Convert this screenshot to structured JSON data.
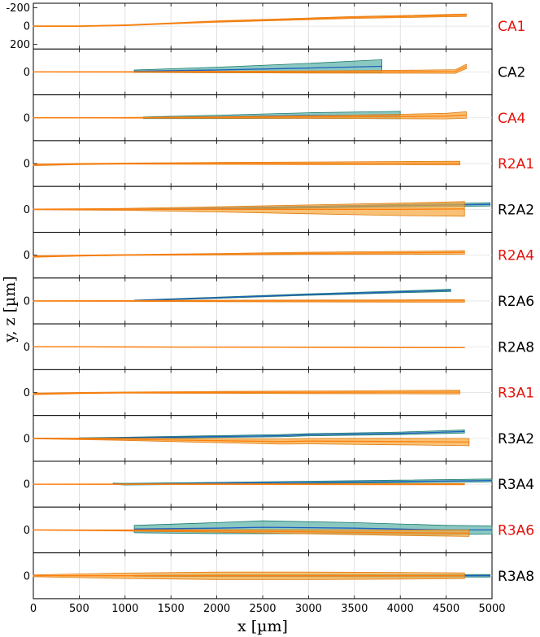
{
  "chart_data": {
    "type": "area",
    "xlabel": "x [µm]",
    "ylabel": "y, z [µm]",
    "xlim": [
      0,
      5000
    ],
    "x_ticks": [
      0,
      500,
      1000,
      1500,
      2000,
      2500,
      3000,
      3500,
      4000,
      4500,
      5000
    ],
    "x_tick_labels": [
      "0",
      "500",
      "1000",
      "1500",
      "2000",
      "2500",
      "3000",
      "3500",
      "4000",
      "4500",
      "5000"
    ],
    "ylim_inverted": [
      250,
      -250
    ],
    "y_ticks": [
      -200,
      0,
      200
    ],
    "y_tick_labels": [
      "-200",
      "0",
      "200"
    ],
    "grid": true,
    "colors": {
      "orange_line": "#ff7f0e",
      "orange_fill": "#f5a63b",
      "blue_line": "#1f5fbf",
      "teal_fill": "#2a9d8f",
      "red_label": "#e3120b",
      "black_label": "#000000"
    },
    "panels": [
      {
        "label": "CA1",
        "label_color": "red",
        "series": [
          {
            "name": "orange",
            "x": [
              0,
              500,
              1000,
              1500,
              2000,
              2500,
              3000,
              3500,
              4000,
              4500,
              4720
            ],
            "y": [
              0,
              0,
              -10,
              -30,
              -50,
              -65,
              -80,
              -95,
              -105,
              -115,
              -120
            ],
            "band": [
              4,
              4,
              5,
              6,
              7,
              8,
              9,
              10,
              11,
              12,
              14
            ]
          }
        ]
      },
      {
        "label": "CA2",
        "label_color": "black",
        "series": [
          {
            "name": "orange",
            "x": [
              0,
              1000,
              2000,
              3000,
              4000,
              4600,
              4720
            ],
            "y": [
              0,
              0,
              0,
              0,
              -2,
              -5,
              -60
            ],
            "band": [
              2,
              4,
              8,
              12,
              16,
              20,
              24
            ]
          },
          {
            "name": "blue",
            "x": [
              1100,
              2000,
              3000,
              3800
            ],
            "y": [
              -8,
              -22,
              -42,
              -62
            ],
            "band": [
              14,
              30,
              52,
              72
            ]
          }
        ]
      },
      {
        "label": "CA4",
        "label_color": "red",
        "series": [
          {
            "name": "orange",
            "x": [
              0,
              1000,
              2000,
              3000,
              4000,
              4500,
              4720
            ],
            "y": [
              0,
              0,
              -3,
              -8,
              -14,
              -18,
              -30
            ],
            "band": [
              2,
              4,
              8,
              14,
              24,
              30,
              36
            ]
          },
          {
            "name": "blue",
            "x": [
              1200,
              2000,
              3000,
              4000
            ],
            "y": [
              0,
              -10,
              -25,
              -30
            ],
            "band": [
              8,
              18,
              30,
              40
            ]
          }
        ]
      },
      {
        "label": "R2A1",
        "label_color": "red",
        "series": [
          {
            "name": "orange",
            "x": [
              0,
              500,
              1000,
              2000,
              3000,
              4000,
              4650
            ],
            "y": [
              15,
              5,
              0,
              -2,
              -3,
              -5,
              -5
            ],
            "band": [
              8,
              6,
              6,
              10,
              14,
              18,
              20
            ]
          }
        ]
      },
      {
        "label": "R2A2",
        "label_color": "black",
        "series": [
          {
            "name": "orange",
            "x": [
              0,
              1000,
              2000,
              3000,
              4000,
              4700
            ],
            "y": [
              0,
              0,
              0,
              0,
              0,
              -5
            ],
            "band": [
              4,
              10,
              28,
              48,
              68,
              80
            ]
          },
          {
            "name": "blue",
            "x": [
              1100,
              2000,
              3000,
              4000,
              4980
            ],
            "y": [
              0,
              -10,
              -25,
              -40,
              -55
            ],
            "band": [
              4,
              6,
              10,
              14,
              18
            ]
          }
        ]
      },
      {
        "label": "R2A4",
        "label_color": "red",
        "series": [
          {
            "name": "orange",
            "x": [
              0,
              500,
              1000,
              2000,
              3000,
              4000,
              4700
            ],
            "y": [
              15,
              5,
              -2,
              -10,
              -20,
              -25,
              -30
            ],
            "band": [
              8,
              6,
              5,
              8,
              12,
              16,
              18
            ]
          }
        ]
      },
      {
        "label": "R2A6",
        "label_color": "black",
        "series": [
          {
            "name": "orange",
            "x": [
              0,
              1000,
              2000,
              3000,
              4000,
              4700
            ],
            "y": [
              0,
              0,
              0,
              0,
              0,
              0
            ],
            "band": [
              3,
              5,
              8,
              10,
              12,
              14
            ]
          },
          {
            "name": "blue",
            "x": [
              1100,
              2000,
              3000,
              4000,
              4550
            ],
            "y": [
              -5,
              -35,
              -70,
              -100,
              -115
            ],
            "band": [
              4,
              6,
              8,
              10,
              12
            ]
          }
        ]
      },
      {
        "label": "R2A8",
        "label_color": "black",
        "series": [
          {
            "name": "orange",
            "x": [
              0,
              1000,
              2000,
              3000,
              4000,
              4700
            ],
            "y": [
              0,
              2,
              4,
              6,
              8,
              10
            ],
            "band": [
              2,
              2,
              2,
              2,
              2,
              2
            ]
          }
        ]
      },
      {
        "label": "R3A1",
        "label_color": "red",
        "series": [
          {
            "name": "orange",
            "x": [
              0,
              500,
              1000,
              2000,
              3000,
              4000,
              4650
            ],
            "y": [
              15,
              5,
              0,
              -2,
              -3,
              -5,
              -5
            ],
            "band": [
              8,
              6,
              6,
              10,
              14,
              18,
              20
            ]
          }
        ]
      },
      {
        "label": "R3A2",
        "label_color": "black",
        "series": [
          {
            "name": "orange",
            "x": [
              0,
              1000,
              2000,
              2700,
              3000,
              4000,
              4750
            ],
            "y": [
              0,
              10,
              25,
              35,
              30,
              35,
              40
            ],
            "band": [
              4,
              12,
              22,
              28,
              30,
              36,
              40
            ]
          },
          {
            "name": "blue",
            "x": [
              500,
              1000,
              2000,
              2700,
              3000,
              4000,
              4700
            ],
            "y": [
              0,
              -5,
              -20,
              -30,
              -40,
              -55,
              -75
            ],
            "band": [
              6,
              8,
              10,
              12,
              12,
              14,
              16
            ]
          }
        ]
      },
      {
        "label": "R3A4",
        "label_color": "black",
        "series": [
          {
            "name": "orange",
            "x": [
              0,
              1000,
              2000,
              3000,
              4000,
              4700
            ],
            "y": [
              0,
              0,
              0,
              0,
              0,
              0
            ],
            "band": [
              2,
              3,
              4,
              5,
              6,
              7
            ]
          },
          {
            "name": "blue",
            "x": [
              870,
              1000,
              2000,
              3000,
              4000,
              5000
            ],
            "y": [
              -5,
              0,
              -10,
              -20,
              -30,
              -40
            ],
            "band": [
              6,
              8,
              10,
              12,
              14,
              16
            ]
          }
        ]
      },
      {
        "label": "R3A6",
        "label_color": "red",
        "series": [
          {
            "name": "orange",
            "x": [
              0,
              1000,
              2000,
              3000,
              4000,
              4750
            ],
            "y": [
              0,
              5,
              10,
              20,
              30,
              35
            ],
            "band": [
              2,
              6,
              14,
              22,
              30,
              36
            ]
          },
          {
            "name": "blue",
            "x": [
              1100,
              2000,
              2500,
              3000,
              3500,
              4000,
              4500,
              5000
            ],
            "y": [
              -10,
              -20,
              -30,
              -25,
              -20,
              -10,
              0,
              0
            ],
            "band": [
              40,
              60,
              70,
              65,
              60,
              55,
              50,
              45
            ]
          }
        ]
      },
      {
        "label": "R3A8",
        "label_color": "black",
        "series": [
          {
            "name": "orange",
            "x": [
              0,
              1000,
              2000,
              3000,
              4000,
              4700
            ],
            "y": [
              0,
              0,
              0,
              0,
              0,
              0
            ],
            "band": [
              10,
              30,
              40,
              40,
              36,
              32
            ]
          },
          {
            "name": "blue",
            "x": [
              1100,
              2000,
              3000,
              4000,
              4980
            ],
            "y": [
              0,
              0,
              0,
              0,
              0
            ],
            "band": [
              6,
              8,
              10,
              12,
              14
            ]
          }
        ]
      }
    ]
  }
}
